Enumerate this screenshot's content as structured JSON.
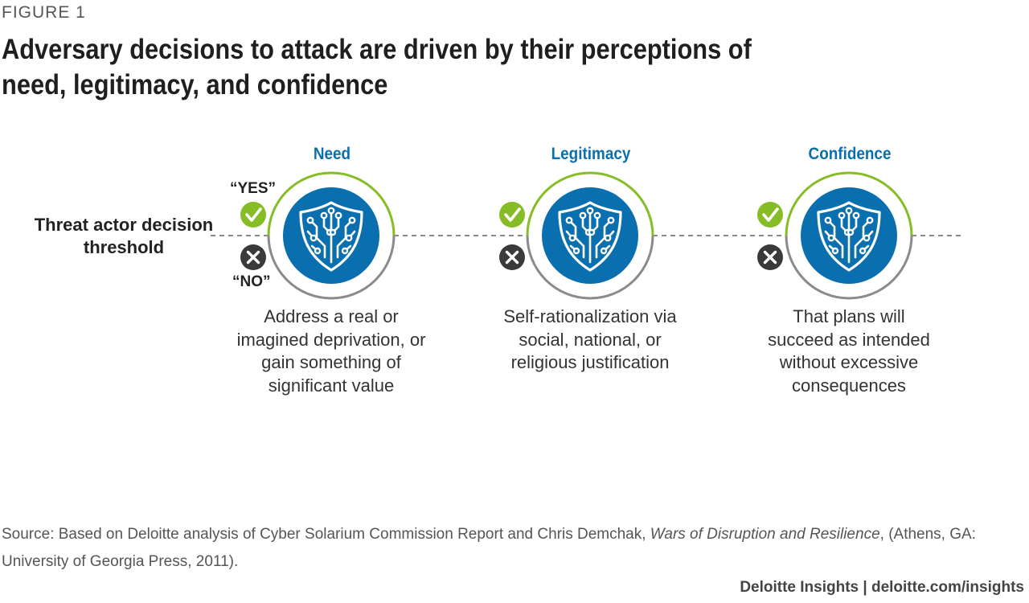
{
  "figure_label": "FIGURE 1",
  "title": "Adversary decisions to attack are driven by their perceptions of need, legitimacy, and confidence",
  "threshold_label": "Threat actor decision threshold",
  "yes_label": "“YES”",
  "no_label": "“NO”",
  "icons": {
    "check": "checkmark-icon",
    "x": "x-mark-icon",
    "shield": "shield-circuit-icon"
  },
  "colors": {
    "blue": "#0a6fae",
    "green": "#86bc25",
    "gray": "#7f7f7f",
    "dark": "#3a3a3a"
  },
  "columns": [
    {
      "title": "Need",
      "description": "Address a real or imagined deprivation, or gain something of significant value"
    },
    {
      "title": "Legitimacy",
      "description": "Self-rationalization via social, national, or religious justification"
    },
    {
      "title": "Confidence",
      "description": "That plans will succeed as intended without excessive consequences"
    }
  ],
  "source": {
    "prefix": "Source: Based on Deloitte analysis of Cyber Solarium Commission Report and Chris Demchak, ",
    "book": "Wars of Disruption and Resilience",
    "suffix": ", (Athens, GA: University of Georgia Press, 2011)."
  },
  "credit": "Deloitte Insights | deloitte.com/insights"
}
